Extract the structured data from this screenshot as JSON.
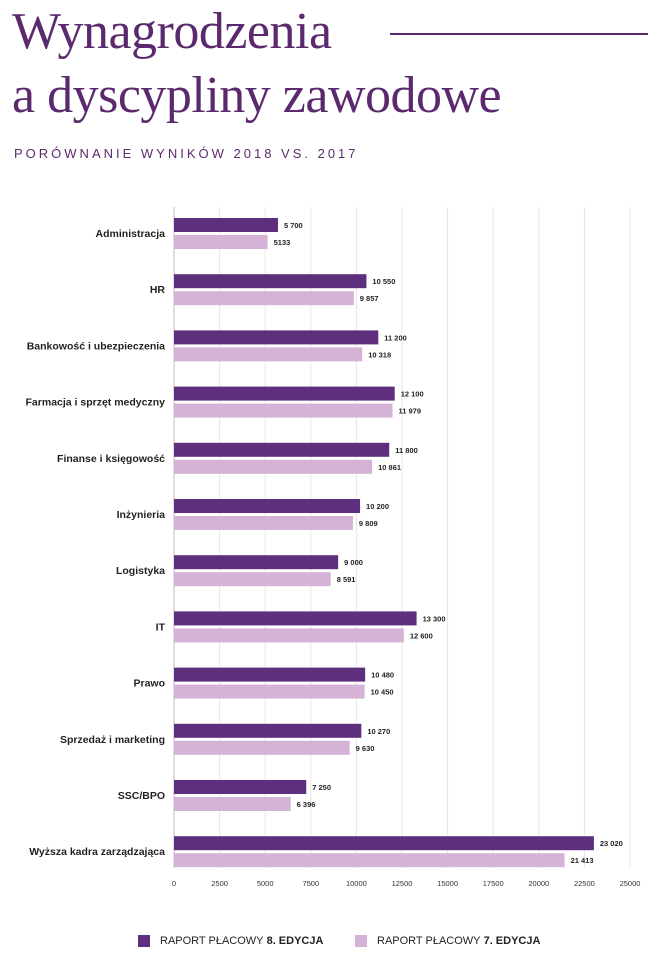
{
  "header": {
    "title_line1": "Wynagrodzenia",
    "title_line2": "a dyscypliny zawodowe",
    "subtitle": "PORÓWNANIE WYNIKÓW 2018 VS. 2017"
  },
  "colors": {
    "title": "#5b2a6e",
    "series_8": "#5d2f7d",
    "series_7": "#d4b3d6",
    "grid": "#e6e6e6"
  },
  "legend": {
    "item1_prefix": "RAPORT PŁACOWY ",
    "item1_bold": "8. EDYCJA",
    "item2_prefix": "RAPORT PŁACOWY ",
    "item2_bold": "7. EDYCJA"
  },
  "chart_data": {
    "type": "bar",
    "orientation": "horizontal",
    "title": "",
    "xlabel": "",
    "ylabel": "",
    "xlim": [
      0,
      25000
    ],
    "xticks": [
      0,
      2500,
      5000,
      7500,
      10000,
      12500,
      15000,
      17500,
      20000,
      22500,
      25000
    ],
    "grid": "vertical",
    "legend_position": "bottom",
    "categories": [
      "Administracja",
      "HR",
      "Bankowość i ubezpieczenia",
      "Farmacja i sprzęt medyczny",
      "Finanse i księgowość",
      "Inżynieria",
      "Logistyka",
      "IT",
      "Prawo",
      "Sprzedaż i marketing",
      "SSC/BPO",
      "Wyższa kadra zarządzająca"
    ],
    "series": [
      {
        "name": "RAPORT PŁACOWY 8. EDYCJA",
        "values": [
          5700,
          10550,
          11200,
          12100,
          11800,
          10200,
          9000,
          13300,
          10480,
          10270,
          7250,
          23020
        ],
        "labels": [
          "5 700",
          "10 550",
          "11 200",
          "12 100",
          "11 800",
          "10 200",
          "9 000",
          "13 300",
          "10 480",
          "10 270",
          "7 250",
          "23 020"
        ]
      },
      {
        "name": "RAPORT PŁACOWY 7. EDYCJA",
        "values": [
          5133,
          9857,
          10318,
          11979,
          10861,
          9809,
          8591,
          12600,
          10450,
          9630,
          6396,
          21413
        ],
        "labels": [
          "5133",
          "9 857",
          "10 318",
          "11 979",
          "10 861",
          "9 809",
          "8 591",
          "12 600",
          "10 450",
          "9 630",
          "6 396",
          "21 413"
        ]
      }
    ]
  }
}
